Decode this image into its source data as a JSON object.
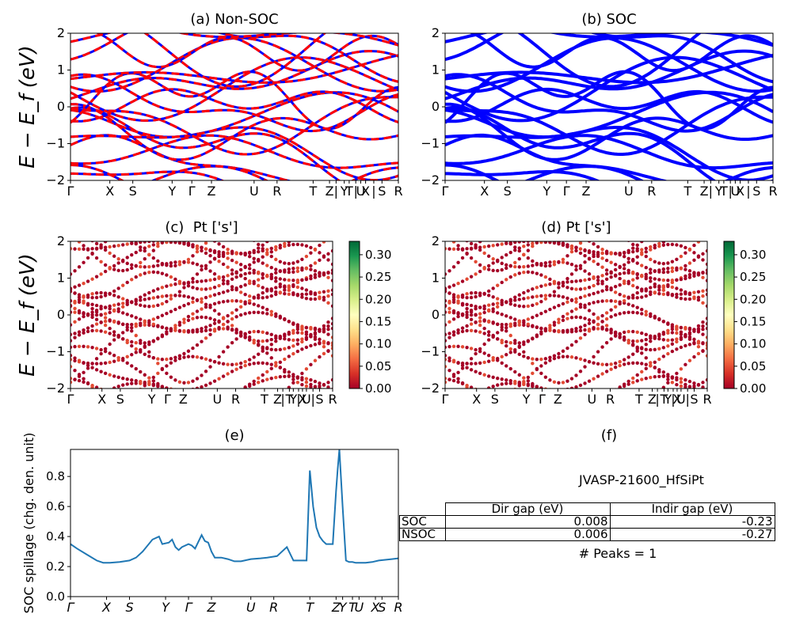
{
  "colors": {
    "band_soc": "#0000ff",
    "band_nonsoc_dash": "#ff0000",
    "spillage_line": "#1f77b4",
    "table_border": "#000000"
  },
  "panels": {
    "a": {
      "title": "(a) Non-SOC"
    },
    "b": {
      "title": "(b) SOC"
    },
    "c": {
      "title": "(c)  Pt ['s']"
    },
    "d": {
      "title": "(d) Pt ['s']"
    },
    "e": {
      "title": "(e)"
    },
    "f": {
      "title": "(f)"
    }
  },
  "ylabel_energy": "E − E_f (eV)",
  "info": {
    "material": "JVASP-21600_HfSiPt",
    "table": {
      "col_headers": [
        "Dir gap (eV)",
        "Indir gap (eV)"
      ],
      "rows": [
        {
          "label": "SOC",
          "dir": "0.008",
          "indir": "-0.23"
        },
        {
          "label": "NSOC",
          "dir": "0.006",
          "indir": "-0.27"
        }
      ]
    },
    "peaks": "# Peaks = 1"
  },
  "chart_data": [
    {
      "panel": "a",
      "type": "line",
      "title": "(a) Non-SOC",
      "ylabel": "E − E_f (eV)",
      "ylim": [
        -2,
        2
      ],
      "yticks": [
        "2",
        "1",
        "0",
        "−1",
        "−2"
      ],
      "xticks": [
        "Γ",
        "X",
        "S",
        "Y",
        "Γ",
        "Z",
        "U",
        "R",
        "T",
        "Z",
        "|",
        "Y",
        "T",
        "|",
        "U",
        "X",
        "|",
        "S",
        "R"
      ],
      "series": [
        {
          "style": "solid blue",
          "values_desc": "band lines"
        },
        {
          "style": "dashed red",
          "values_desc": "band lines"
        }
      ]
    },
    {
      "panel": "b",
      "type": "line",
      "title": "(b) SOC",
      "ylim": [
        -2,
        2
      ],
      "yticks": [
        "2",
        "1",
        "0",
        "−1",
        "−2"
      ],
      "xticks": [
        "Γ",
        "X",
        "S",
        "Y",
        "Γ",
        "Z",
        "U",
        "R",
        "T",
        "Z",
        "|",
        "Y",
        "T",
        "|",
        "U",
        "X",
        "|",
        "S",
        "R"
      ]
    },
    {
      "panel": "c",
      "type": "scatter",
      "title": "(c)  Pt ['s']",
      "ylim": [
        -2,
        2
      ],
      "yticks": [
        "2",
        "1",
        "0",
        "−1",
        "−2"
      ],
      "xticks": [
        "Γ",
        "X",
        "S",
        "Y",
        "Γ",
        "Z",
        "U",
        "R",
        "T",
        "Z",
        "|",
        "T",
        "Y",
        "|",
        "X",
        "U",
        "|",
        "S",
        "R"
      ],
      "colorbar": {
        "min": 0.0,
        "max": 0.33,
        "ticks": [
          "0.00",
          "0.05",
          "0.10",
          "0.15",
          "0.20",
          "0.25",
          "0.30"
        ],
        "colormap": "RdYlGn"
      }
    },
    {
      "panel": "d",
      "type": "scatter",
      "title": "(d) Pt ['s']",
      "ylim": [
        -2,
        2
      ],
      "yticks": [
        "2",
        "1",
        "0",
        "−1",
        "−2"
      ],
      "xticks": [
        "Γ",
        "X",
        "S",
        "Y",
        "Γ",
        "Z",
        "U",
        "R",
        "T",
        "Z",
        "|",
        "T",
        "Y",
        "|",
        "X",
        "U",
        "|",
        "S",
        "R"
      ],
      "colorbar": {
        "min": 0.0,
        "max": 0.33,
        "ticks": [
          "0.00",
          "0.05",
          "0.10",
          "0.15",
          "0.20",
          "0.25",
          "0.30"
        ],
        "colormap": "RdYlGn"
      }
    },
    {
      "panel": "e",
      "type": "line",
      "title": "(e)",
      "ylabel": "SOC spillage (chg. den. unit)",
      "ylim": [
        0,
        0.98
      ],
      "yticks": [
        "0.0",
        "0.2",
        "0.4",
        "0.6",
        "0.8"
      ],
      "xticks": [
        "Γ",
        "X",
        "S",
        "Y",
        "Γ",
        "Z",
        "U",
        "R",
        "T",
        "Z",
        "Y",
        "T",
        "U",
        "X",
        "S",
        "R"
      ],
      "x": [
        0,
        0.02,
        0.05,
        0.08,
        0.1,
        0.12,
        0.15,
        0.18,
        0.2,
        0.22,
        0.25,
        0.27,
        0.28,
        0.3,
        0.31,
        0.32,
        0.33,
        0.34,
        0.36,
        0.37,
        0.38,
        0.4,
        0.41,
        0.42,
        0.43,
        0.44,
        0.46,
        0.48,
        0.5,
        0.52,
        0.55,
        0.58,
        0.6,
        0.63,
        0.66,
        0.68,
        0.7,
        0.72,
        0.73,
        0.74,
        0.75,
        0.76,
        0.77,
        0.78,
        0.79,
        0.8,
        0.81,
        0.815,
        0.82,
        0.83,
        0.84,
        0.845,
        0.85,
        0.86,
        0.87,
        0.88,
        0.9,
        0.92,
        0.94,
        0.96,
        0.98,
        1.0
      ],
      "values": [
        0.35,
        0.32,
        0.28,
        0.24,
        0.225,
        0.225,
        0.23,
        0.24,
        0.26,
        0.3,
        0.38,
        0.4,
        0.35,
        0.36,
        0.38,
        0.33,
        0.31,
        0.33,
        0.35,
        0.34,
        0.32,
        0.41,
        0.37,
        0.36,
        0.3,
        0.26,
        0.26,
        0.25,
        0.235,
        0.235,
        0.25,
        0.255,
        0.26,
        0.27,
        0.33,
        0.24,
        0.24,
        0.24,
        0.84,
        0.6,
        0.46,
        0.4,
        0.37,
        0.35,
        0.35,
        0.35,
        0.7,
        0.85,
        0.98,
        0.6,
        0.24,
        0.235,
        0.23,
        0.23,
        0.225,
        0.225,
        0.225,
        0.23,
        0.24,
        0.245,
        0.25,
        0.255
      ]
    }
  ]
}
